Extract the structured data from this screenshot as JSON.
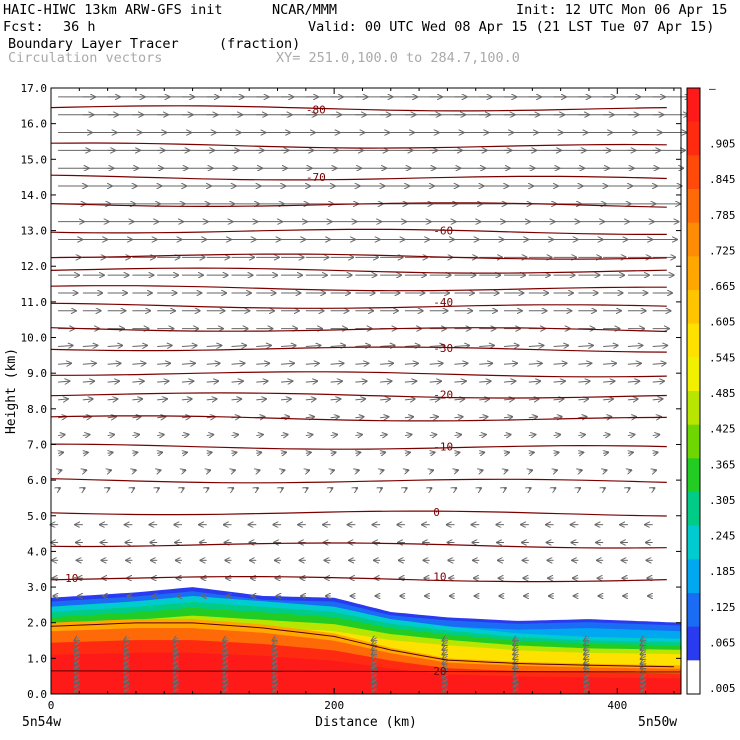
{
  "header": {
    "model": "HAIC-HIWC 13km ARW-GFS init",
    "org": "NCAR/MMM",
    "init": "Init: 12 UTC Mon 06 Apr 15",
    "fcst_label": "Fcst:",
    "fcst_value": "36 h",
    "valid": "Valid: 00 UTC Wed 08 Apr 15 (21 LST Tue 07 Apr 15)",
    "field_name": "Boundary Layer Tracer",
    "field_units": "(fraction)",
    "overlay_name": "Circulation vectors",
    "xy_range": "XY= 251.0,100.0 to 284.7,100.0"
  },
  "chart_data": {
    "type": "heatmap",
    "xlabel": "Distance (km)",
    "ylabel": "Height (km)",
    "xlim": [
      0,
      445
    ],
    "ylim": [
      0,
      17
    ],
    "x_ticks": [
      "0",
      "200",
      "400"
    ],
    "x_tick_values": [
      0,
      200,
      400
    ],
    "x_endpoint_labels": [
      "5n54w",
      "5n50w"
    ],
    "y_ticks": [
      "0.0",
      "1.0",
      "2.0",
      "3.0",
      "4.0",
      "5.0",
      "6.0",
      "7.0",
      "8.0",
      "9.0",
      "10.0",
      "11.0",
      "12.0",
      "13.0",
      "14.0",
      "15.0",
      "16.0",
      "17.0"
    ],
    "y_tick_values": [
      0,
      1,
      2,
      3,
      4,
      5,
      6,
      7,
      8,
      9,
      10,
      11,
      12,
      13,
      14,
      15,
      16,
      17
    ],
    "colorbar": {
      "labels": [
        "–",
        ".905",
        ".845",
        ".785",
        ".725",
        ".665",
        ".605",
        ".545",
        ".485",
        ".425",
        ".365",
        ".305",
        ".245",
        ".185",
        ".125",
        ".065",
        ".005"
      ],
      "colors": [
        "#ff1a1a",
        "#ff2b10",
        "#ff4a0a",
        "#ff6a08",
        "#ff8c05",
        "#ffa600",
        "#ffc400",
        "#ffe100",
        "#f0f000",
        "#b8e600",
        "#6ed600",
        "#22cc22",
        "#00cc88",
        "#00ccd0",
        "#00a8f0",
        "#1a6cf5",
        "#2a3aee",
        "#ffffff"
      ]
    },
    "isotherm_labels": [
      {
        "text": "-80",
        "x": 180,
        "y": 16.4
      },
      {
        "text": "-70",
        "x": 180,
        "y": 14.5
      },
      {
        "text": "-60",
        "x": 270,
        "y": 13.0
      },
      {
        "text": "-40",
        "x": 270,
        "y": 11.0
      },
      {
        "text": "-30",
        "x": 270,
        "y": 9.7
      },
      {
        "text": "-20",
        "x": 270,
        "y": 8.4
      },
      {
        "text": "-10",
        "x": 270,
        "y": 6.95
      },
      {
        "text": "0",
        "x": 270,
        "y": 5.1
      },
      {
        "text": "10",
        "x": 10,
        "y": 3.25
      },
      {
        "text": "10",
        "x": 270,
        "y": 3.3
      },
      {
        "text": "20",
        "x": 270,
        "y": 0.65
      }
    ],
    "isotherm_heights": [
      16.45,
      15.4,
      14.5,
      13.75,
      13.0,
      12.3,
      11.9,
      11.4,
      10.9,
      10.25,
      9.7,
      9.0,
      8.4,
      7.75,
      6.95,
      6.0,
      5.1,
      4.2,
      3.25
    ],
    "tracer_top_heights": [
      {
        "x": 0,
        "top": 2.7,
        "mid": 2.45,
        "core": 2.0
      },
      {
        "x": 60,
        "top": 2.85,
        "mid": 2.6,
        "core": 2.1
      },
      {
        "x": 100,
        "top": 3.0,
        "mid": 2.75,
        "core": 2.1
      },
      {
        "x": 150,
        "top": 2.75,
        "mid": 2.6,
        "core": 1.95
      },
      {
        "x": 200,
        "top": 2.7,
        "mid": 2.45,
        "core": 1.7
      },
      {
        "x": 240,
        "top": 2.3,
        "mid": 2.1,
        "core": 1.3
      },
      {
        "x": 280,
        "top": 2.15,
        "mid": 1.9,
        "core": 1.0
      },
      {
        "x": 330,
        "top": 2.05,
        "mid": 1.7,
        "core": 0.9
      },
      {
        "x": 380,
        "top": 2.1,
        "mid": 1.6,
        "core": 0.85
      },
      {
        "x": 445,
        "top": 2.0,
        "mid": 1.55,
        "core": 0.8
      }
    ]
  }
}
